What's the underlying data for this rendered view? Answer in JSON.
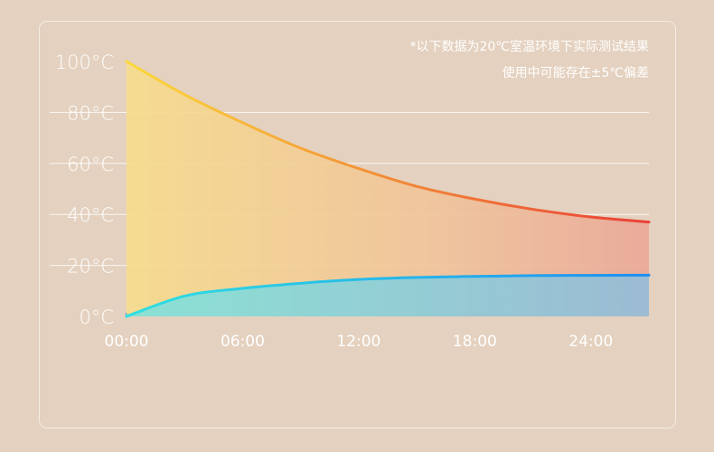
{
  "notes": {
    "line1": "*以下数据为20℃室温环境下实际测试结果",
    "line2": "使用中可能存在±5℃偏差"
  },
  "chart_data": {
    "type": "area",
    "title": "",
    "xlabel": "",
    "ylabel": "",
    "y_ticks": [
      "0°C",
      "20°C",
      "40°C",
      "60°C",
      "80°C",
      "100°C"
    ],
    "x_ticks": [
      "00:00",
      "06:00",
      "12:00",
      "18:00",
      "24:00"
    ],
    "ylim": [
      0,
      100
    ],
    "xlim_hours": [
      0,
      27
    ],
    "grid": true,
    "series": [
      {
        "x": [
          0,
          3,
          6,
          9,
          12,
          15,
          18,
          21,
          24,
          27
        ],
        "values": [
          100,
          87,
          76,
          66,
          58,
          51,
          46,
          42,
          39,
          37
        ],
        "color_start": "#fbd93a",
        "color_end": "#ea3f36",
        "fill": "#f3c98f"
      },
      {
        "x": [
          0,
          3,
          6,
          9,
          12,
          15,
          18,
          21,
          24,
          27
        ],
        "values": [
          0,
          8,
          11,
          13,
          14.5,
          15.3,
          15.7,
          16,
          16.1,
          16.2
        ],
        "color_start": "#2fe0e0",
        "color_end": "#1e8ff2",
        "fill": "#8cd0da"
      }
    ]
  }
}
